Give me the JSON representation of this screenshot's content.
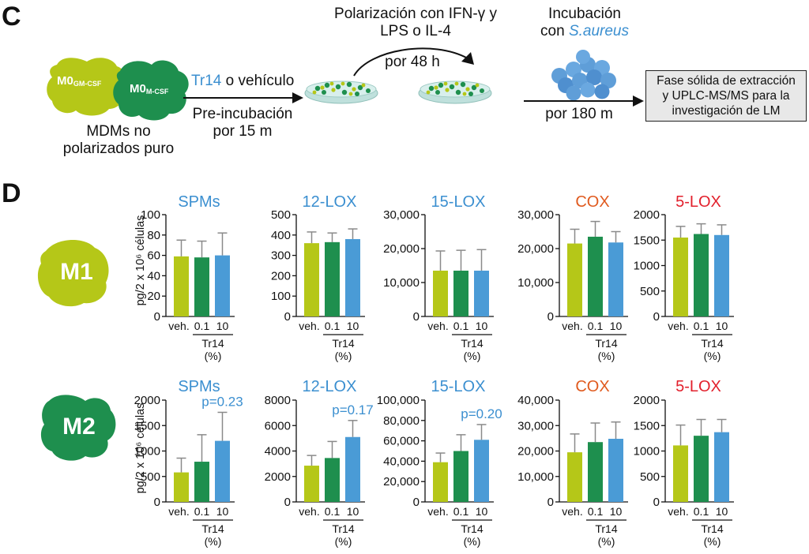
{
  "panel_c": {
    "letter": "C",
    "blob_gm_main": "M0",
    "blob_gm_sub": "GM-CSF",
    "blob_m_main": "M0",
    "blob_m_sub": "M-CSF",
    "mdm_line1": "MDMs no",
    "mdm_line2": "polarizados puro",
    "tr14": "Tr14",
    "vehiculo": " o vehículo",
    "preinc_line1": "Pre-incubación",
    "preinc_line2": "por 15 m",
    "polar_line1": "Polarización con IFN-γ  y",
    "polar_line2": "LPS o IL-4",
    "polar_time": "por 48 h",
    "incub_line1": "Incubación",
    "incub_con": "con ",
    "incub_bact": "S.aureus",
    "incub_time": "por 180 m",
    "box_line1": "Fase sólida de extracción",
    "box_line2": "y UPLC-MS/MS para la",
    "box_line3": "investigación de LM",
    "colors": {
      "lime": "#b5c718",
      "green": "#1e8f4e",
      "blue": "#4a9bd6",
      "bact": "#5f9ed8"
    }
  },
  "panel_d": {
    "letter": "D",
    "m1_label": "M1",
    "m2_label": "M2",
    "ylabel": "pg/2 x 10⁶ células",
    "group_label": "Tr14",
    "group_unit": "(%)"
  },
  "chart_data": [
    {
      "type": "bar",
      "row": "M1",
      "title": "SPMs",
      "title_color": "#3b8fd0",
      "categories": [
        "veh.",
        "0.1",
        "10"
      ],
      "values": [
        59,
        58,
        60
      ],
      "errors": [
        16,
        16,
        22
      ],
      "ylim": [
        0,
        100
      ],
      "yticks": [
        "0",
        "20",
        "40",
        "60",
        "80",
        "100"
      ],
      "colors": [
        "#b5c718",
        "#1e8f4e",
        "#4a9bd6"
      ]
    },
    {
      "type": "bar",
      "row": "M1",
      "title": "12-LOX",
      "title_color": "#3b8fd0",
      "categories": [
        "veh.",
        "0.1",
        "10"
      ],
      "values": [
        360,
        365,
        380
      ],
      "errors": [
        55,
        45,
        50
      ],
      "ylim": [
        0,
        500
      ],
      "yticks": [
        "0",
        "100",
        "200",
        "300",
        "400",
        "500"
      ],
      "colors": [
        "#b5c718",
        "#1e8f4e",
        "#4a9bd6"
      ]
    },
    {
      "type": "bar",
      "row": "M1",
      "title": "15-LOX",
      "title_color": "#3b8fd0",
      "categories": [
        "veh.",
        "0.1",
        "10"
      ],
      "values": [
        13500,
        13500,
        13500
      ],
      "errors": [
        5800,
        6000,
        6200
      ],
      "ylim": [
        0,
        30000
      ],
      "yticks": [
        "0",
        "10,000",
        "20,000",
        "30,000"
      ],
      "colors": [
        "#b5c718",
        "#1e8f4e",
        "#4a9bd6"
      ]
    },
    {
      "type": "bar",
      "row": "M1",
      "title": "COX",
      "title_color": "#e05a1e",
      "categories": [
        "veh.",
        "0.1",
        "10"
      ],
      "values": [
        21500,
        23500,
        21800
      ],
      "errors": [
        4200,
        4500,
        3200
      ],
      "ylim": [
        0,
        30000
      ],
      "yticks": [
        "0",
        "10,000",
        "20,000",
        "30,000"
      ],
      "colors": [
        "#b5c718",
        "#1e8f4e",
        "#4a9bd6"
      ]
    },
    {
      "type": "bar",
      "row": "M1",
      "title": "5-LOX",
      "title_color": "#e2202c",
      "categories": [
        "veh.",
        "0.1",
        "10"
      ],
      "values": [
        1550,
        1620,
        1600
      ],
      "errors": [
        220,
        200,
        200
      ],
      "ylim": [
        0,
        2000
      ],
      "yticks": [
        "0",
        "500",
        "1000",
        "1500",
        "2000"
      ],
      "colors": [
        "#b5c718",
        "#1e8f4e",
        "#4a9bd6"
      ]
    },
    {
      "type": "bar",
      "row": "M2",
      "title": "SPMs",
      "title_color": "#3b8fd0",
      "categories": [
        "veh.",
        "0.1",
        "10"
      ],
      "values": [
        580,
        790,
        1200
      ],
      "errors": [
        280,
        530,
        560
      ],
      "ylim": [
        0,
        2000
      ],
      "yticks": [
        "0",
        "500",
        "1000",
        "1500",
        "2000"
      ],
      "annotation": "p=0.23",
      "colors": [
        "#b5c718",
        "#1e8f4e",
        "#4a9bd6"
      ]
    },
    {
      "type": "bar",
      "row": "M2",
      "title": "12-LOX",
      "title_color": "#3b8fd0",
      "categories": [
        "veh.",
        "0.1",
        "10"
      ],
      "values": [
        2850,
        3450,
        5100
      ],
      "errors": [
        800,
        1300,
        1300
      ],
      "ylim": [
        0,
        8000
      ],
      "yticks": [
        "0",
        "2000",
        "4000",
        "6000",
        "8000"
      ],
      "annotation": "p=0.17",
      "colors": [
        "#b5c718",
        "#1e8f4e",
        "#4a9bd6"
      ]
    },
    {
      "type": "bar",
      "row": "M2",
      "title": "15-LOX",
      "title_color": "#3b8fd0",
      "categories": [
        "veh.",
        "0.1",
        "10"
      ],
      "values": [
        39000,
        50000,
        61000
      ],
      "errors": [
        9000,
        16000,
        15000
      ],
      "ylim": [
        0,
        100000
      ],
      "yticks": [
        "0",
        "20,000",
        "40,000",
        "60,000",
        "80,000",
        "100,000"
      ],
      "annotation": "p=0.20",
      "colors": [
        "#b5c718",
        "#1e8f4e",
        "#4a9bd6"
      ]
    },
    {
      "type": "bar",
      "row": "M2",
      "title": "COX",
      "title_color": "#e05a1e",
      "categories": [
        "veh.",
        "0.1",
        "10"
      ],
      "values": [
        19500,
        23500,
        24800
      ],
      "errors": [
        7200,
        7500,
        6600
      ],
      "ylim": [
        0,
        40000
      ],
      "yticks": [
        "0",
        "10,000",
        "20,000",
        "30,000",
        "40,000"
      ],
      "colors": [
        "#b5c718",
        "#1e8f4e",
        "#4a9bd6"
      ]
    },
    {
      "type": "bar",
      "row": "M2",
      "title": "5-LOX",
      "title_color": "#e2202c",
      "categories": [
        "veh.",
        "0.1",
        "10"
      ],
      "values": [
        1110,
        1300,
        1370
      ],
      "errors": [
        400,
        320,
        250
      ],
      "ylim": [
        0,
        2000
      ],
      "yticks": [
        "0",
        "500",
        "1000",
        "1500",
        "2000"
      ],
      "colors": [
        "#b5c718",
        "#1e8f4e",
        "#4a9bd6"
      ]
    }
  ]
}
